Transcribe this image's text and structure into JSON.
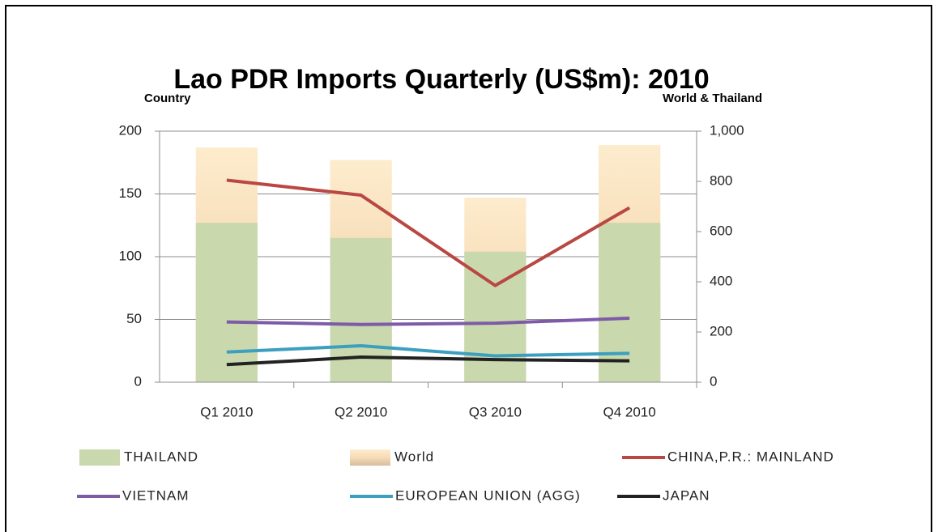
{
  "chart_data": {
    "type": "combo",
    "title": "Lao PDR Imports Quarterly (US$m): 2010",
    "y_label": "Country",
    "y2_label": "World & Thailand",
    "categories": [
      "Q1 2010",
      "Q2 2010",
      "Q3 2010",
      "Q4 2010"
    ],
    "ylim": [
      0,
      200
    ],
    "yticks": [
      0,
      50,
      100,
      150,
      200
    ],
    "y2lim": [
      0,
      1000
    ],
    "y2ticks": [
      0,
      200,
      400,
      600,
      800,
      {
        "value": 1000,
        "label": "1,000"
      }
    ],
    "grid": true,
    "series": [
      {
        "name": "THAILAND",
        "type": "bar",
        "axis": "y2",
        "color": "#c9d9ad",
        "values": [
          635,
          575,
          520,
          635
        ]
      },
      {
        "name": "World",
        "type": "bar",
        "axis": "y2",
        "color": "#fde9c8",
        "values": [
          935,
          885,
          735,
          945
        ]
      },
      {
        "name": "CHINA,P.R.: MAINLAND",
        "type": "line",
        "color": "#b94742",
        "values": [
          161,
          149,
          77,
          139
        ]
      },
      {
        "name": "VIETNAM",
        "type": "line",
        "color": "#7d5ba6",
        "values": [
          48,
          46,
          47,
          51
        ]
      },
      {
        "name": "EUROPEAN UNION (AGG)",
        "type": "line",
        "color": "#3d9fbf",
        "values": [
          24,
          29,
          21,
          23
        ]
      },
      {
        "name": "JAPAN",
        "type": "line",
        "color": "#222222",
        "values": [
          14,
          20,
          18,
          17
        ]
      }
    ]
  }
}
